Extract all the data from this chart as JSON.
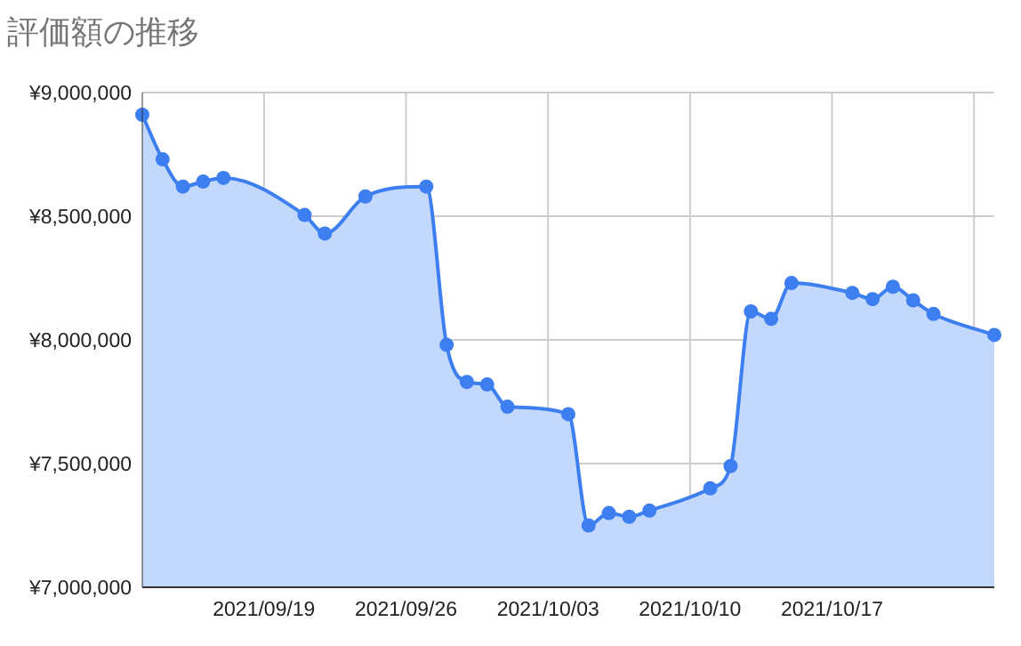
{
  "chart_data": {
    "type": "area",
    "title": "評価額の推移",
    "x": [
      "2021-09-13",
      "2021-09-14",
      "2021-09-15",
      "2021-09-16",
      "2021-09-17",
      "2021-09-21",
      "2021-09-22",
      "2021-09-24",
      "2021-09-27",
      "2021-09-28",
      "2021-09-29",
      "2021-09-30",
      "2021-10-01",
      "2021-10-04",
      "2021-10-05",
      "2021-10-06",
      "2021-10-07",
      "2021-10-08",
      "2021-10-11",
      "2021-10-12",
      "2021-10-13",
      "2021-10-14",
      "2021-10-15",
      "2021-10-18",
      "2021-10-19",
      "2021-10-20",
      "2021-10-21",
      "2021-10-22",
      "2021-10-25"
    ],
    "series": [
      {
        "color": "#3d7ff0",
        "values": [
          8910000,
          8730000,
          8620000,
          8640000,
          8655000,
          8505000,
          8430000,
          8580000,
          8620000,
          7980000,
          7830000,
          7820000,
          7730000,
          7700000,
          7250000,
          7300000,
          7285000,
          7310000,
          7400000,
          7490000,
          8115000,
          8085000,
          8230000,
          8190000,
          8165000,
          8215000,
          8160000,
          8105000,
          8020000
        ]
      }
    ],
    "xlim": [
      "2021-09-13",
      "2021-10-25"
    ],
    "xticks": [
      {
        "value": "2021-09-19",
        "label": "2021/09/19"
      },
      {
        "value": "2021-09-26",
        "label": "2021/09/26"
      },
      {
        "value": "2021-10-03",
        "label": "2021/10/03"
      },
      {
        "value": "2021-10-10",
        "label": "2021/10/10"
      },
      {
        "value": "2021-10-17",
        "label": "2021/10/17"
      },
      {
        "value": "2021-10-24",
        "label": null
      }
    ],
    "ylim": [
      7000000,
      9000000
    ],
    "yticks": [
      {
        "value": 7000000,
        "label": "¥7,000,000"
      },
      {
        "value": 7500000,
        "label": "¥7,500,000"
      },
      {
        "value": 8000000,
        "label": "¥8,000,000"
      },
      {
        "value": 8500000,
        "label": "¥8,500,000"
      },
      {
        "value": 9000000,
        "label": "¥9,000,000"
      }
    ],
    "grid": true,
    "marker": "circle"
  }
}
